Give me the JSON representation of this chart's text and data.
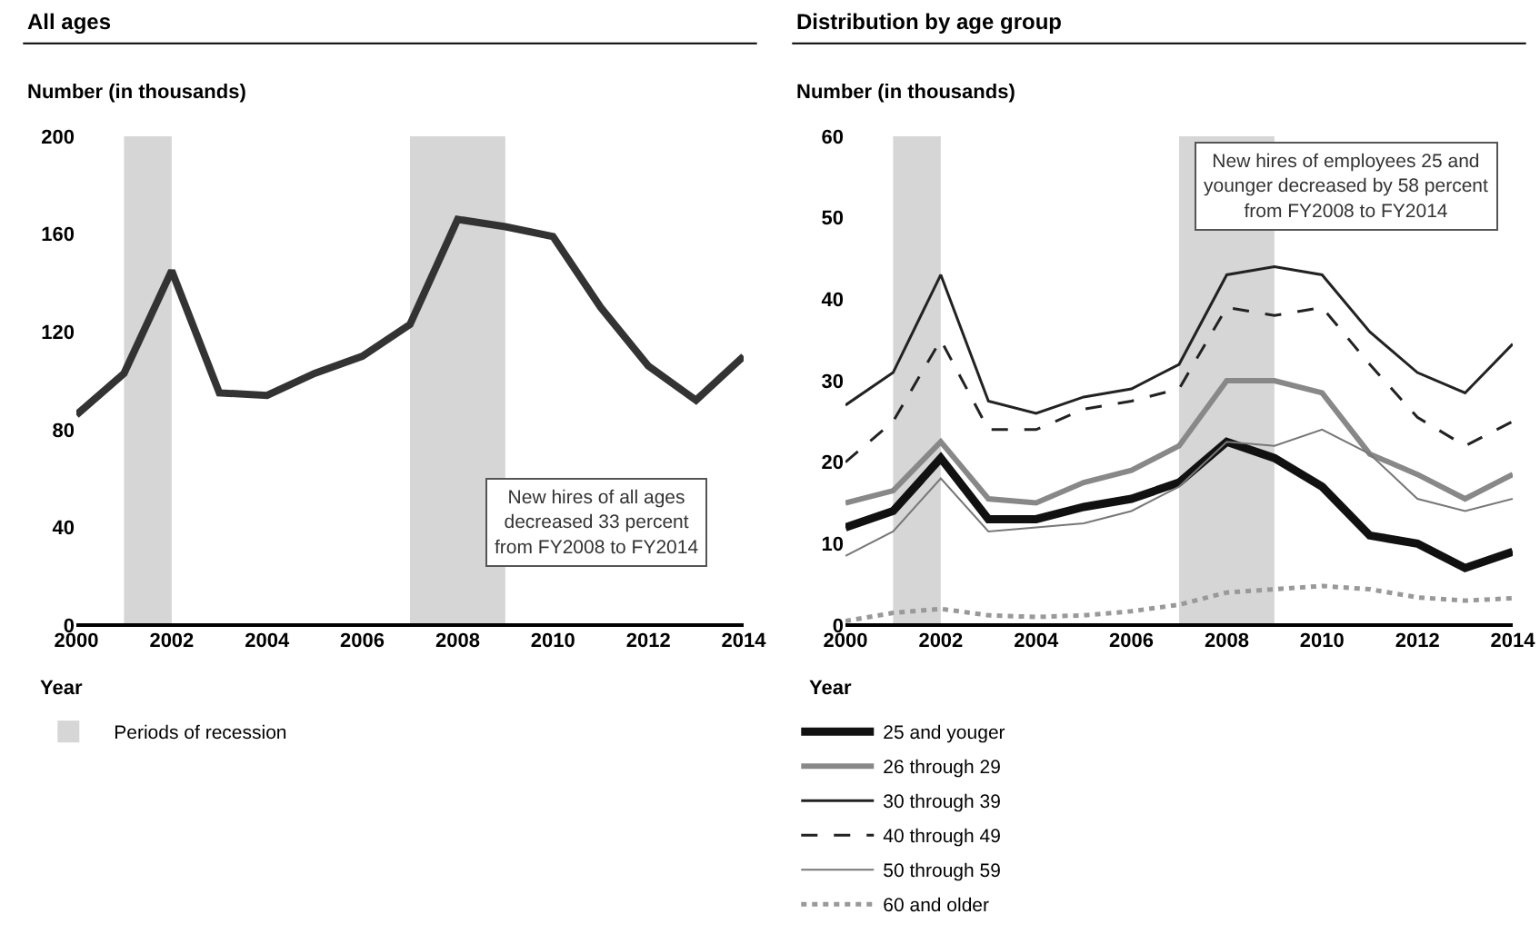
{
  "chart_data": [
    {
      "type": "line",
      "title": "All ages",
      "ylabel": "Number (in thousands)",
      "xlabel": "Year",
      "x": [
        2000,
        2001,
        2002,
        2003,
        2004,
        2005,
        2006,
        2007,
        2008,
        2009,
        2010,
        2011,
        2012,
        2013,
        2014
      ],
      "series": [
        {
          "color": "#333333",
          "values": [
            86,
            103,
            145,
            95,
            94,
            103,
            110,
            123,
            166,
            163,
            159,
            130,
            106,
            92,
            110
          ]
        }
      ],
      "xlim": [
        2000,
        2014
      ],
      "xticks": [
        2000,
        2002,
        2004,
        2006,
        2008,
        2010,
        2012,
        2014
      ],
      "ylim": [
        0,
        200
      ],
      "yticks": [
        0,
        40,
        80,
        120,
        160,
        200
      ],
      "grid": false,
      "legend": "bottom left",
      "bands": [
        {
          "axis": "x",
          "from": 2001,
          "to": 2002,
          "label": "Periods of recession",
          "color": "#cccccc"
        },
        {
          "axis": "x",
          "from": 2007,
          "to": 2009,
          "color": "#cccccc"
        }
      ],
      "annotations": [
        "New hires of all ages\ndecreased 33 percent\nfrom FY2008 to FY2014"
      ]
    },
    {
      "type": "line",
      "title": "Distribution by age group",
      "ylabel": "Number (in thousands)",
      "xlabel": "Year",
      "x": [
        2000,
        2001,
        2002,
        2003,
        2004,
        2005,
        2006,
        2007,
        2008,
        2009,
        2010,
        2011,
        2012,
        2013,
        2014
      ],
      "series": [
        {
          "name": "25 and youger",
          "color": "#111111",
          "line_style": "solid",
          "values": [
            12,
            14,
            20.5,
            13,
            13,
            14.5,
            15.5,
            17.5,
            22.5,
            20.5,
            17,
            11,
            10,
            7,
            9
          ]
        },
        {
          "name": "26 through 29",
          "color": "#888888",
          "line_style": "solid",
          "values": [
            15,
            16.5,
            22.5,
            15.5,
            15,
            17.5,
            19,
            22,
            30,
            30,
            28.5,
            21,
            18.5,
            15.5,
            18.5
          ]
        },
        {
          "name": "30 through 39",
          "color": "#222222",
          "line_style": "solid",
          "values": [
            27,
            31,
            43,
            27.5,
            26,
            28,
            29,
            32,
            43,
            44,
            43,
            36,
            31,
            28.5,
            34.5
          ]
        },
        {
          "name": "40 through 49",
          "color": "#222222",
          "line_style": "dashed",
          "values": [
            20,
            25,
            35,
            24,
            24,
            26.5,
            27.5,
            29,
            39,
            38,
            39,
            32,
            25.5,
            22,
            25
          ]
        },
        {
          "name": "50 through 59",
          "color": "#777777",
          "line_style": "solid",
          "values": [
            8.5,
            11.5,
            18,
            11.5,
            12,
            12.5,
            14,
            17,
            22.5,
            22,
            24,
            21,
            15.5,
            14,
            15.5
          ]
        },
        {
          "name": "60 and older",
          "color": "#999999",
          "line_style": "dotted",
          "values": [
            0.5,
            1.5,
            2,
            1.2,
            1,
            1.2,
            1.7,
            2.5,
            4,
            4.4,
            4.8,
            4.4,
            3.4,
            3,
            3.3
          ]
        }
      ],
      "xlim": [
        2000,
        2014
      ],
      "xticks": [
        2000,
        2002,
        2004,
        2006,
        2008,
        2010,
        2012,
        2014
      ],
      "ylim": [
        0,
        60
      ],
      "yticks": [
        0,
        10,
        20,
        30,
        40,
        50,
        60
      ],
      "grid": false,
      "legend": "bottom left",
      "bands": [
        {
          "axis": "x",
          "from": 2001,
          "to": 2002,
          "color": "#cccccc"
        },
        {
          "axis": "x",
          "from": 2007,
          "to": 2009,
          "color": "#cccccc"
        }
      ],
      "annotations": [
        "New hires of employees 25 and\nyounger decreased by 58 percent\nfrom FY2008 to FY2014"
      ]
    }
  ]
}
